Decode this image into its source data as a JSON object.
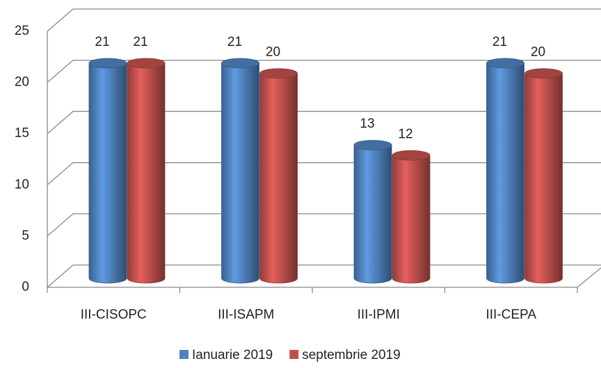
{
  "chart_data": {
    "type": "bar",
    "style": "3d-cylinder",
    "categories": [
      "III-CISOPC",
      "III-ISAPM",
      "III-IPMI",
      "III-CEPA"
    ],
    "series": [
      {
        "name": "Ianuarie 2019",
        "color": "#4f81bd",
        "values": [
          21,
          21,
          13,
          21
        ]
      },
      {
        "name": "septembrie 2019",
        "color": "#c0504d",
        "values": [
          21,
          20,
          12,
          20
        ]
      }
    ],
    "ylim": [
      0,
      25
    ],
    "yticks": [
      0,
      5,
      10,
      15,
      20,
      25
    ],
    "grid": true,
    "legend": "bottom"
  }
}
